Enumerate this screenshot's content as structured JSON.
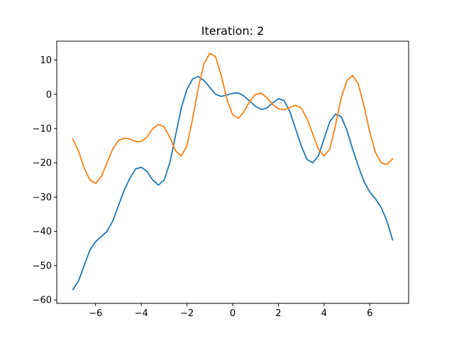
{
  "chart_data": {
    "type": "line",
    "title": "Iteration: 2",
    "xlabel": "",
    "ylabel": "",
    "xlim": [
      -7.7,
      7.7
    ],
    "ylim": [
      -61,
      15.5
    ],
    "xticks": [
      -6,
      -4,
      -2,
      0,
      2,
      4,
      6
    ],
    "xtick_labels": [
      "−6",
      "−4",
      "−2",
      "0",
      "2",
      "4",
      "6"
    ],
    "yticks": [
      -60,
      -50,
      -40,
      -30,
      -20,
      -10,
      0,
      10
    ],
    "ytick_labels": [
      "−60",
      "−50",
      "−40",
      "−30",
      "−20",
      "−10",
      "0",
      "10"
    ],
    "grid": false,
    "series": [
      {
        "color": "#1f77b4",
        "points": [
          [
            -7.0,
            -57.0
          ],
          [
            -6.75,
            -54.5
          ],
          [
            -6.5,
            -50.0
          ],
          [
            -6.25,
            -45.5
          ],
          [
            -6.0,
            -43.0
          ],
          [
            -5.75,
            -41.5
          ],
          [
            -5.5,
            -40.0
          ],
          [
            -5.25,
            -37.0
          ],
          [
            -5.0,
            -32.5
          ],
          [
            -4.75,
            -28.0
          ],
          [
            -4.5,
            -24.5
          ],
          [
            -4.25,
            -21.8
          ],
          [
            -4.0,
            -21.3
          ],
          [
            -3.75,
            -22.5
          ],
          [
            -3.5,
            -25.0
          ],
          [
            -3.25,
            -26.5
          ],
          [
            -3.0,
            -25.0
          ],
          [
            -2.75,
            -20.0
          ],
          [
            -2.5,
            -12.0
          ],
          [
            -2.25,
            -4.0
          ],
          [
            -2.0,
            1.5
          ],
          [
            -1.75,
            4.5
          ],
          [
            -1.5,
            5.2
          ],
          [
            -1.25,
            4.0
          ],
          [
            -1.0,
            2.0
          ],
          [
            -0.75,
            0.0
          ],
          [
            -0.5,
            -0.6
          ],
          [
            -0.25,
            -0.2
          ],
          [
            0.0,
            0.3
          ],
          [
            0.25,
            0.4
          ],
          [
            0.5,
            -0.5
          ],
          [
            0.75,
            -2.0
          ],
          [
            1.0,
            -3.5
          ],
          [
            1.25,
            -4.4
          ],
          [
            1.5,
            -4.0
          ],
          [
            1.75,
            -2.5
          ],
          [
            2.0,
            -1.3
          ],
          [
            2.25,
            -1.8
          ],
          [
            2.5,
            -5.0
          ],
          [
            2.75,
            -10.0
          ],
          [
            3.0,
            -15.0
          ],
          [
            3.25,
            -19.0
          ],
          [
            3.5,
            -20.0
          ],
          [
            3.75,
            -18.0
          ],
          [
            4.0,
            -13.0
          ],
          [
            4.25,
            -8.0
          ],
          [
            4.5,
            -5.8
          ],
          [
            4.75,
            -6.5
          ],
          [
            5.0,
            -10.5
          ],
          [
            5.25,
            -16.0
          ],
          [
            5.5,
            -21.0
          ],
          [
            5.75,
            -25.5
          ],
          [
            6.0,
            -28.5
          ],
          [
            6.25,
            -30.5
          ],
          [
            6.5,
            -33.0
          ],
          [
            6.75,
            -37.0
          ],
          [
            7.0,
            -42.5
          ]
        ]
      },
      {
        "color": "#ff7f0e",
        "points": [
          [
            -7.0,
            -13.0
          ],
          [
            -6.75,
            -16.5
          ],
          [
            -6.5,
            -21.5
          ],
          [
            -6.25,
            -25.0
          ],
          [
            -6.0,
            -26.0
          ],
          [
            -5.75,
            -24.0
          ],
          [
            -5.5,
            -20.0
          ],
          [
            -5.25,
            -16.0
          ],
          [
            -5.0,
            -13.5
          ],
          [
            -4.75,
            -12.8
          ],
          [
            -4.5,
            -13.0
          ],
          [
            -4.25,
            -13.8
          ],
          [
            -4.0,
            -13.8
          ],
          [
            -3.75,
            -12.5
          ],
          [
            -3.5,
            -10.0
          ],
          [
            -3.25,
            -8.8
          ],
          [
            -3.0,
            -9.5
          ],
          [
            -2.75,
            -12.5
          ],
          [
            -2.5,
            -16.5
          ],
          [
            -2.25,
            -18.0
          ],
          [
            -2.0,
            -15.0
          ],
          [
            -1.75,
            -7.0
          ],
          [
            -1.5,
            2.0
          ],
          [
            -1.25,
            9.0
          ],
          [
            -1.0,
            12.0
          ],
          [
            -0.75,
            11.0
          ],
          [
            -0.5,
            5.5
          ],
          [
            -0.25,
            -1.5
          ],
          [
            0.0,
            -6.0
          ],
          [
            0.25,
            -7.0
          ],
          [
            0.5,
            -5.0
          ],
          [
            0.75,
            -2.0
          ],
          [
            1.0,
            0.0
          ],
          [
            1.25,
            0.3
          ],
          [
            1.5,
            -1.0
          ],
          [
            1.75,
            -3.0
          ],
          [
            2.0,
            -4.2
          ],
          [
            2.25,
            -4.5
          ],
          [
            2.5,
            -3.8
          ],
          [
            2.75,
            -3.2
          ],
          [
            3.0,
            -4.0
          ],
          [
            3.25,
            -7.0
          ],
          [
            3.5,
            -11.5
          ],
          [
            3.75,
            -16.0
          ],
          [
            4.0,
            -18.0
          ],
          [
            4.25,
            -16.0
          ],
          [
            4.5,
            -9.0
          ],
          [
            4.75,
            -1.0
          ],
          [
            5.0,
            4.0
          ],
          [
            5.25,
            5.5
          ],
          [
            5.5,
            3.0
          ],
          [
            5.75,
            -3.5
          ],
          [
            6.0,
            -11.0
          ],
          [
            6.25,
            -17.0
          ],
          [
            6.5,
            -20.0
          ],
          [
            6.75,
            -20.5
          ],
          [
            7.0,
            -18.8
          ]
        ]
      }
    ]
  }
}
